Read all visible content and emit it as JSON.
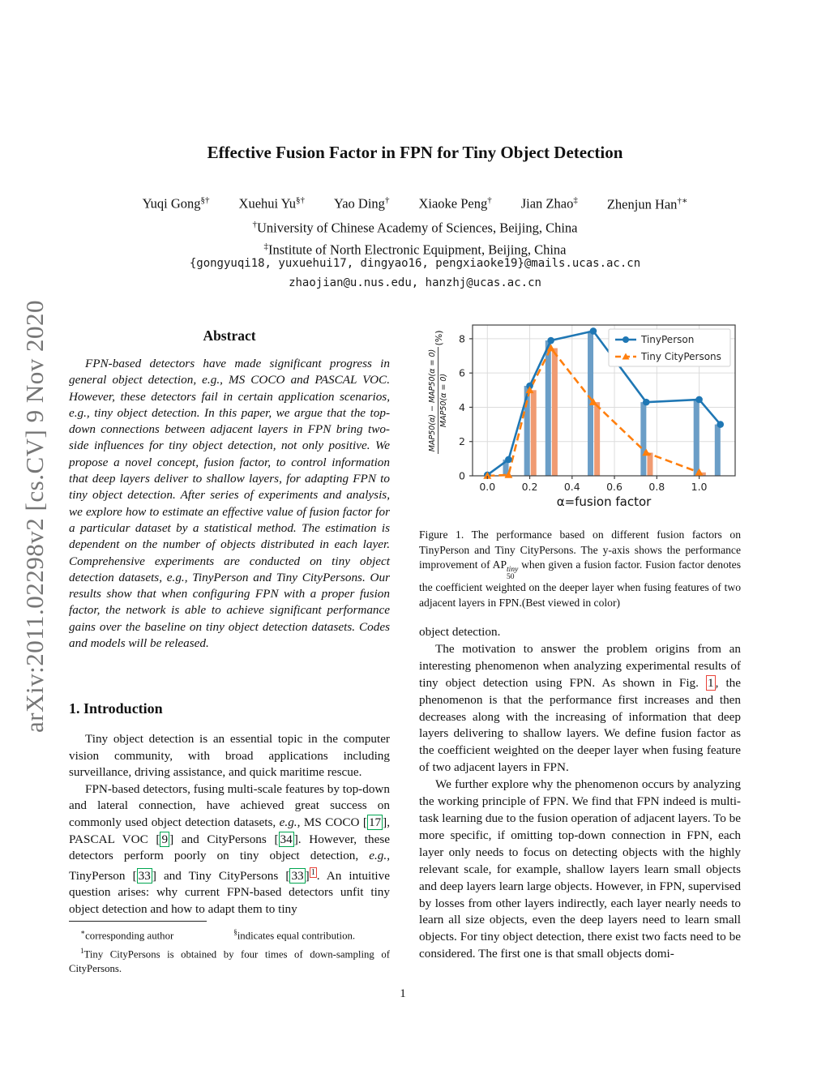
{
  "watermark": "arXiv:2011.02298v2  [cs.CV]  9 Nov 2020",
  "header": {
    "title": "Effective Fusion Factor in FPN for Tiny Object Detection",
    "authors": [
      {
        "name": "Yuqi Gong",
        "sup": "§†"
      },
      {
        "name": "Xuehui Yu",
        "sup": "§†"
      },
      {
        "name": "Yao Ding",
        "sup": "†"
      },
      {
        "name": "Xiaoke Peng",
        "sup": "†"
      },
      {
        "name": "Jian Zhao",
        "sup": "‡"
      },
      {
        "name": "Zhenjun Han",
        "sup": "†∗"
      }
    ],
    "affiliations": [
      {
        "sup": "†",
        "text": "University of Chinese Academy of Sciences, Beijing, China"
      },
      {
        "sup": "‡",
        "text": "Institute of North Electronic Equipment, Beijing, China"
      }
    ],
    "emails": [
      "{gongyuqi18, yuxuehui17, dingyao16, pengxiaoke19}@mails.ucas.ac.cn",
      "zhaojian@u.nus.edu, hanzhj@ucas.ac.cn"
    ]
  },
  "abstract": {
    "heading": "Abstract",
    "text": "FPN-based detectors have made significant progress in general object detection, e.g., MS COCO and PASCAL VOC. However, these detectors fail in certain application scenarios, e.g., tiny object detection. In this paper, we argue that the top-down connections between adjacent layers in FPN bring two-side influences for tiny object detection, not only positive. We propose a novel concept, fusion factor, to control information that deep layers deliver to shallow layers, for adapting FPN to tiny object detection. After series of experiments and analysis, we explore how to estimate an effective value of fusion factor for a particular dataset by a statistical method. The estimation is dependent on the number of objects distributed in each layer. Comprehensive experiments are conducted on tiny object detection datasets, e.g., TinyPerson and Tiny CityPersons. Our results show that when configuring FPN with a proper fusion factor, the network is able to achieve significant performance gains over the baseline on tiny object detection datasets. Codes and models will be released."
  },
  "intro": {
    "heading": "1. Introduction",
    "para1": "Tiny object detection is an essential topic in the computer vision community, with broad applications including surveillance, driving assistance, and quick maritime rescue.",
    "para2": [
      {
        "t": "FPN-based detectors, fusing multi-scale features by top-down and lateral connection, have achieved great success on commonly used object detection datasets, "
      },
      {
        "t": "e.g.",
        "s": "it"
      },
      {
        "t": ", MS COCO ["
      },
      {
        "t": "17",
        "s": "cg"
      },
      {
        "t": "], PASCAL VOC ["
      },
      {
        "t": "9",
        "s": "cg"
      },
      {
        "t": "] and CityPersons ["
      },
      {
        "t": "34",
        "s": "cg"
      },
      {
        "t": "]. However, these detectors perform poorly on tiny object detection, "
      },
      {
        "t": "e.g.",
        "s": "it"
      },
      {
        "t": ", TinyPerson ["
      },
      {
        "t": "33",
        "s": "cg"
      },
      {
        "t": "] and Tiny CityPersons ["
      },
      {
        "t": "33",
        "s": "cg"
      },
      {
        "t": "]"
      },
      {
        "t": "1",
        "s": "crs"
      },
      {
        "t": ". An intuitive question arises: why current FPN-based detectors unfit tiny object detection and how to adapt them to tiny"
      }
    ]
  },
  "footnotes": {
    "star": {
      "sup": "∗",
      "text": "corresponding author"
    },
    "section": {
      "sup": "§",
      "text": "indicates equal contribution."
    },
    "fn1": {
      "sup": "1",
      "text": "Tiny CityPersons is obtained by four times of down-sampling of CityPersons."
    }
  },
  "figure": {
    "caption": [
      {
        "t": "Figure 1. The performance based on different fusion factors on TinyPerson and Tiny CityPersons.  The y-axis shows the performance improvement of AP"
      },
      {
        "s": "supsub",
        "sup": "tiny",
        "sub": "50"
      },
      {
        "t": " when given a fusion factor.  Fusion factor denotes the coefficient weighted on the deeper layer when fusing features of two adjacent layers in FPN.(Best viewed in color)"
      }
    ]
  },
  "right_column": {
    "para0": "object detection.",
    "para1": [
      {
        "t": "The motivation to answer the problem origins from an interesting phenomenon when analyzing experimental results of tiny object detection using FPN. As shown in Fig. "
      },
      {
        "t": "1",
        "s": "cr"
      },
      {
        "t": ", the phenomenon is that the performance first increases and then decreases along with the increasing of information that deep layers delivering to shallow layers. We define fusion factor as the coefficient weighted on the deeper layer when fusing feature of two adjacent layers in FPN."
      }
    ],
    "para2": "We further explore why the phenomenon occurs by analyzing the working principle of FPN. We find that FPN indeed is multi-task learning due to the fusion operation of adjacent layers. To be more specific, if omitting top-down connection in FPN, each layer only needs to focus on detecting objects with the highly relevant scale, for example, shallow layers learn small objects and deep layers learn large objects. However, in FPN, supervised by losses from other layers indirectly, each layer nearly needs to learn all size objects, even the deep layers need to learn small objects. For tiny object detection, there exist two facts need to be considered. The first one is that small objects domi-"
  },
  "page_number": "1",
  "chart_data": {
    "type": "line",
    "xlabel": "α=fusion factor",
    "ylabel_numerator": "MAP50(α) − MAP50(α = 0)",
    "ylabel_denominator": "MAP50(α = 0)",
    "ylabel_unit": "(%)",
    "x_ticks": [
      0.0,
      0.2,
      0.4,
      0.6,
      0.8,
      1.0
    ],
    "y_ticks": [
      0,
      2,
      4,
      6,
      8
    ],
    "xlim": [
      -0.07,
      1.17
    ],
    "ylim": [
      0,
      8.8
    ],
    "grid": true,
    "legend_position": "top-right",
    "series": [
      {
        "name": "TinyPerson",
        "color": "#1f77b4",
        "bar_color": "#6b9ec7",
        "marker": "circle",
        "line": "solid",
        "x": [
          0.0,
          0.1,
          0.2,
          0.3,
          0.5,
          0.75,
          1.0,
          1.1
        ],
        "y": [
          0.05,
          0.95,
          5.25,
          7.9,
          8.45,
          4.3,
          4.45,
          3.0
        ]
      },
      {
        "name": "Tiny CityPersons",
        "color": "#ff7f0e",
        "bar_color": "#f09b72",
        "marker": "triangle",
        "line": "dashed",
        "x": [
          0.0,
          0.1,
          0.2,
          0.3,
          0.5,
          0.75,
          1.0
        ],
        "y": [
          0.0,
          0.05,
          5.0,
          7.45,
          4.3,
          1.35,
          0.2
        ]
      }
    ]
  }
}
